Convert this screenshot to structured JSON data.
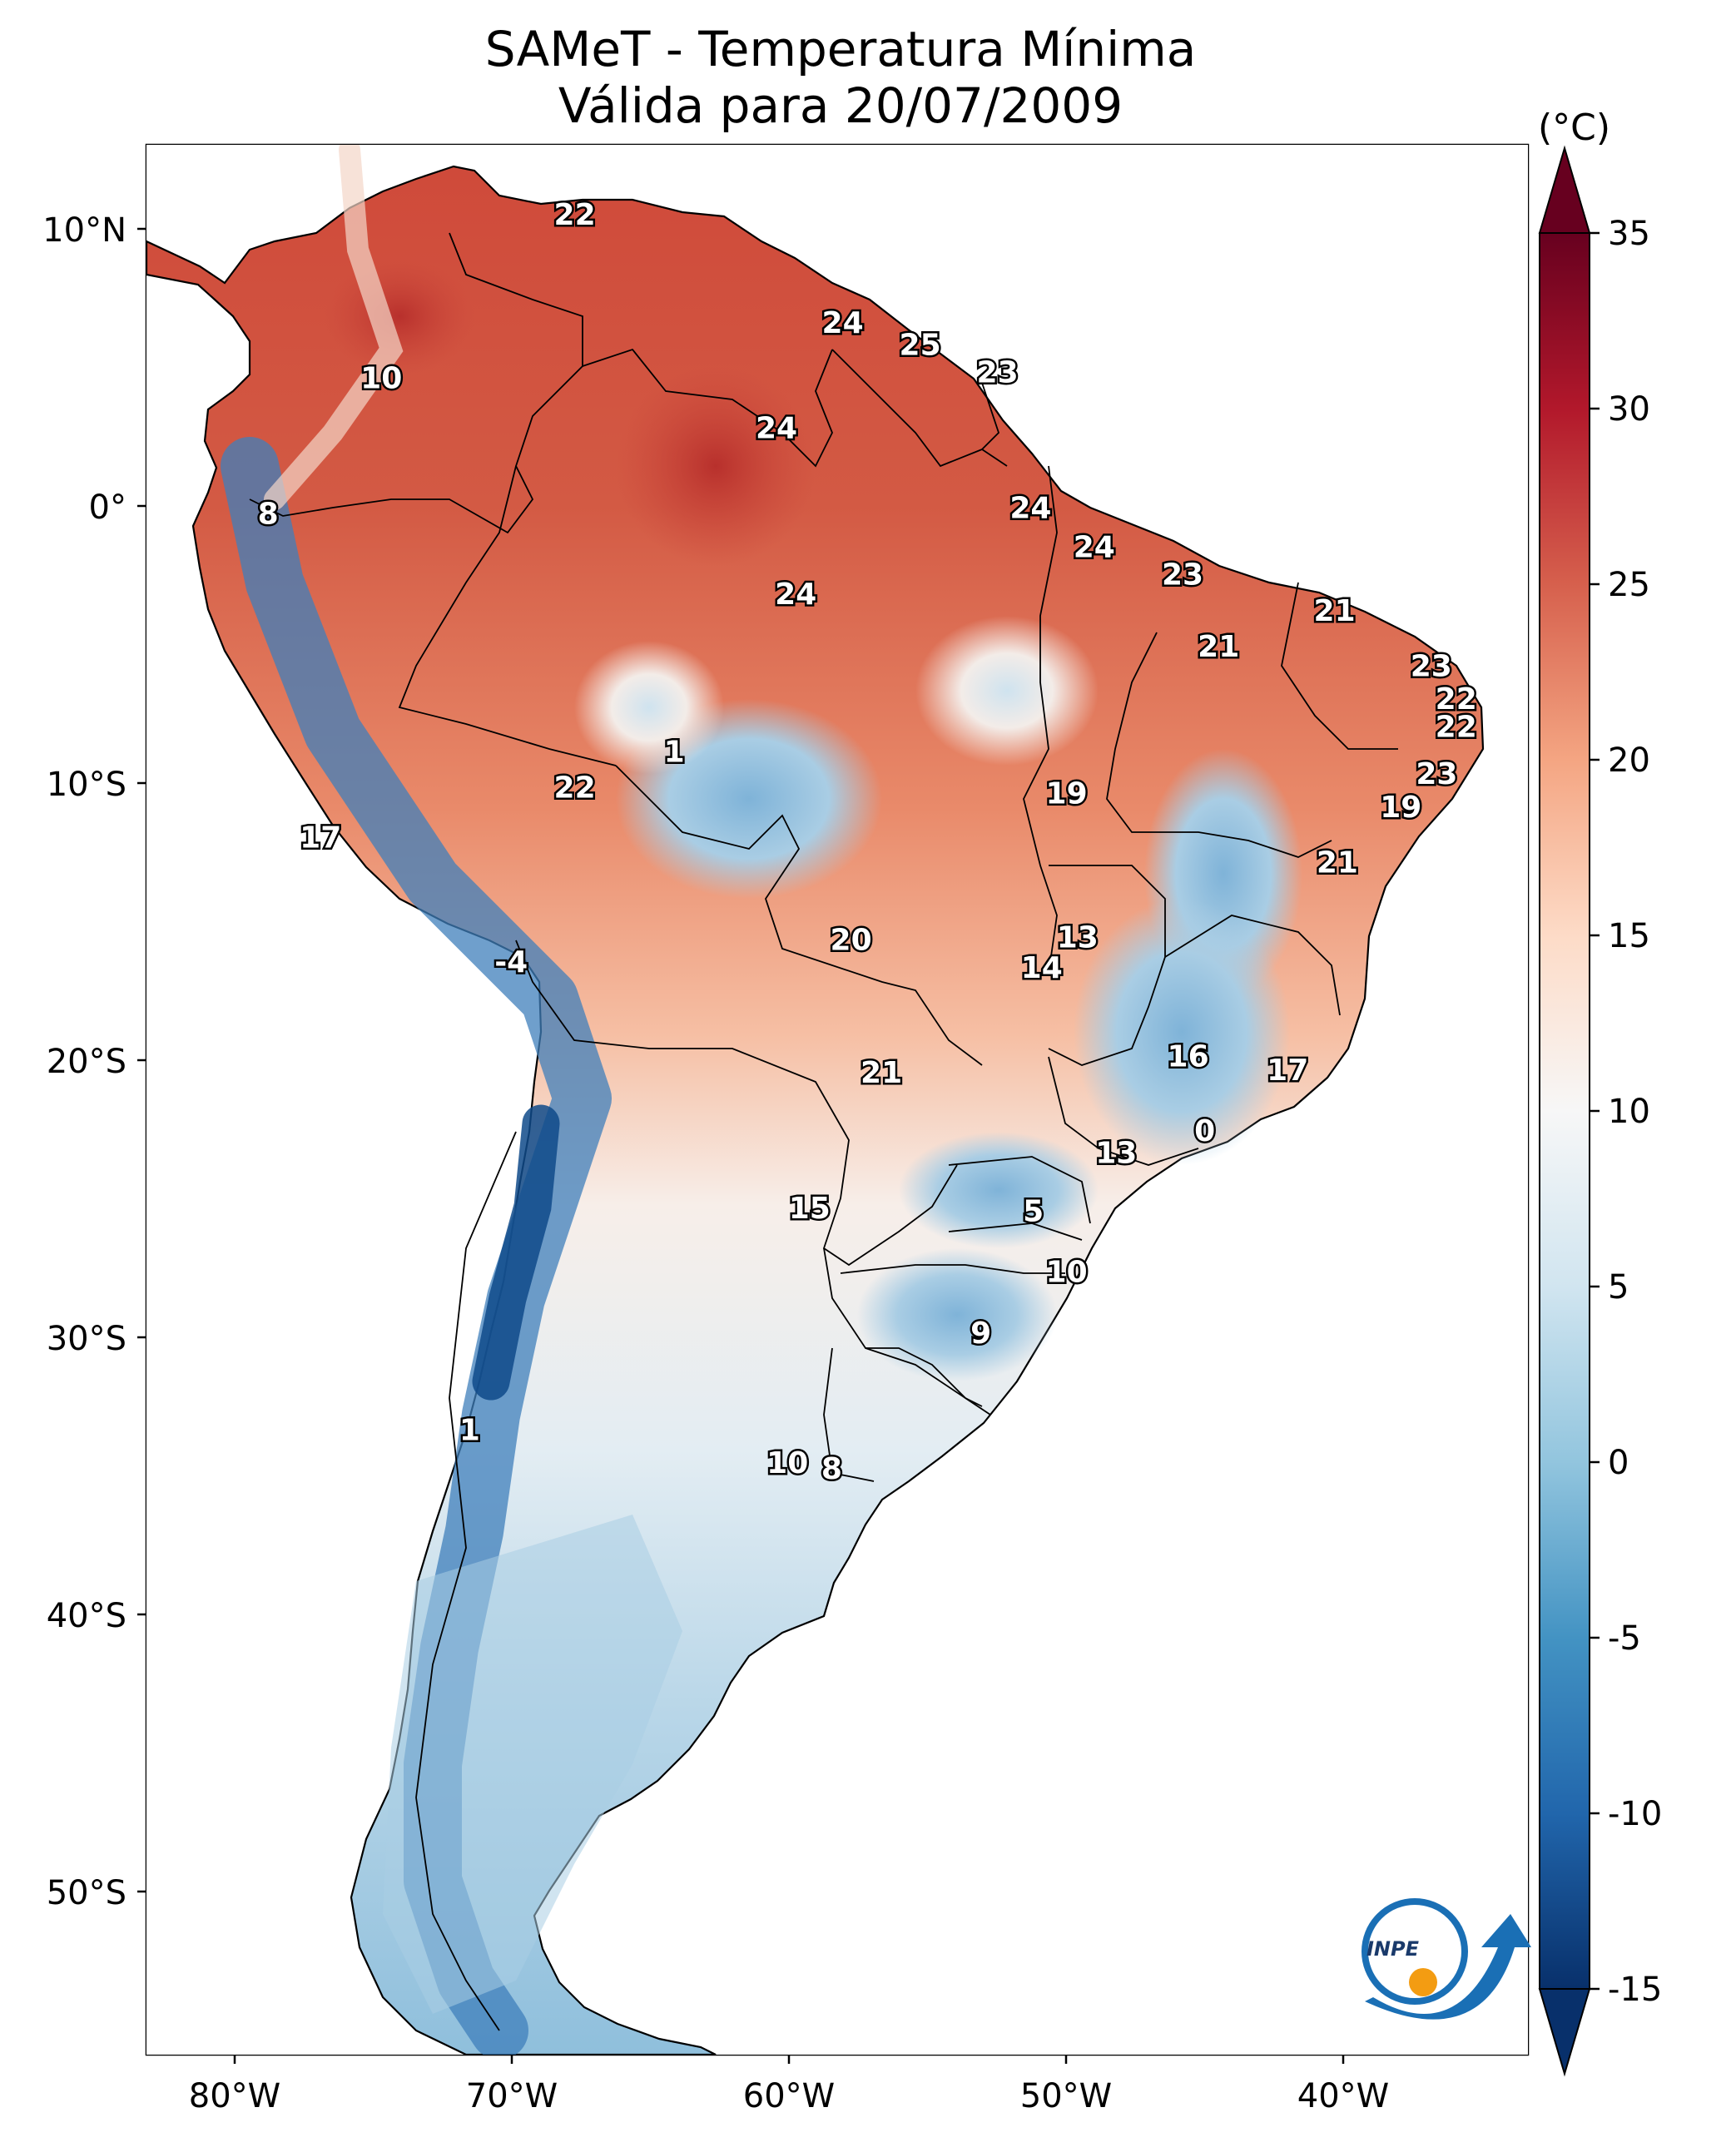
{
  "title": "SAMeT - Temperatura Mínima",
  "subtitle": "Válida para 20/07/2009",
  "colorbar": {
    "unit": "(°C)",
    "ticks": [
      "35",
      "30",
      "25",
      "20",
      "15",
      "10",
      "5",
      "0",
      "-5",
      "-10",
      "-15"
    ],
    "tick_values": [
      35,
      30,
      25,
      20,
      15,
      10,
      5,
      0,
      -5,
      -10,
      -15
    ],
    "range": [
      -15,
      35
    ],
    "extend": "both",
    "colormap": "RdBu_r",
    "colors": [
      "#08306b",
      "#2166ac",
      "#4393c3",
      "#92c5de",
      "#d1e5f0",
      "#f7f7f7",
      "#fddbc7",
      "#f4a582",
      "#d6604d",
      "#b2182b",
      "#67001f"
    ]
  },
  "axes": {
    "lon_ticks": [
      "80°W",
      "70°W",
      "60°W",
      "50°W",
      "40°W"
    ],
    "lon_values": [
      -80,
      -70,
      -60,
      -50,
      -40
    ],
    "lat_ticks": [
      "10°N",
      "0°",
      "10°S",
      "20°S",
      "30°S",
      "40°S",
      "50°S"
    ],
    "lat_values": [
      10,
      0,
      -10,
      -20,
      -30,
      -40,
      -50
    ],
    "extent": {
      "lon": [
        -83,
        -33
      ],
      "lat": [
        -56,
        13
      ]
    }
  },
  "logo": {
    "text": "INPE",
    "icon": "inpe-logo",
    "colors": [
      "#1a6fb5",
      "#f39c12"
    ]
  },
  "temperature_labels": [
    {
      "text": "22",
      "lon": -67.5,
      "lat": 10.5
    },
    {
      "text": "24",
      "lon": -57.8,
      "lat": 6.6
    },
    {
      "text": "25",
      "lon": -55.0,
      "lat": 5.8
    },
    {
      "text": "23",
      "lon": -52.2,
      "lat": 4.8
    },
    {
      "text": "10",
      "lon": -74.5,
      "lat": 4.6
    },
    {
      "text": "24",
      "lon": -60.2,
      "lat": 2.8
    },
    {
      "text": "8",
      "lon": -78.6,
      "lat": -0.3
    },
    {
      "text": "24",
      "lon": -51.0,
      "lat": -0.1
    },
    {
      "text": "24",
      "lon": -48.7,
      "lat": -1.5
    },
    {
      "text": "23",
      "lon": -45.5,
      "lat": -2.5
    },
    {
      "text": "24",
      "lon": -59.5,
      "lat": -3.2
    },
    {
      "text": "21",
      "lon": -40.0,
      "lat": -3.8
    },
    {
      "text": "21",
      "lon": -44.2,
      "lat": -5.1
    },
    {
      "text": "23",
      "lon": -36.5,
      "lat": -5.8
    },
    {
      "text": "22",
      "lon": -35.6,
      "lat": -7.0
    },
    {
      "text": "22",
      "lon": -35.6,
      "lat": -8.0
    },
    {
      "text": "1",
      "lon": -63.9,
      "lat": -8.9
    },
    {
      "text": "22",
      "lon": -67.5,
      "lat": -10.2
    },
    {
      "text": "19",
      "lon": -49.7,
      "lat": -10.4
    },
    {
      "text": "23",
      "lon": -36.3,
      "lat": -9.7
    },
    {
      "text": "17",
      "lon": -76.7,
      "lat": -12.0
    },
    {
      "text": "19",
      "lon": -37.6,
      "lat": -10.9
    },
    {
      "text": "21",
      "lon": -39.9,
      "lat": -12.9
    },
    {
      "text": "13",
      "lon": -49.3,
      "lat": -15.6
    },
    {
      "text": "20",
      "lon": -57.5,
      "lat": -15.7
    },
    {
      "text": "14",
      "lon": -50.6,
      "lat": -16.7
    },
    {
      "text": "-4",
      "lon": -69.8,
      "lat": -16.5
    },
    {
      "text": "16",
      "lon": -45.3,
      "lat": -19.9
    },
    {
      "text": "17",
      "lon": -41.7,
      "lat": -20.4
    },
    {
      "text": "21",
      "lon": -56.4,
      "lat": -20.5
    },
    {
      "text": "0",
      "lon": -44.7,
      "lat": -22.6
    },
    {
      "text": "13",
      "lon": -47.9,
      "lat": -23.4
    },
    {
      "text": "15",
      "lon": -59.0,
      "lat": -25.4
    },
    {
      "text": "5",
      "lon": -50.9,
      "lat": -25.5
    },
    {
      "text": "10",
      "lon": -49.7,
      "lat": -27.7
    },
    {
      "text": "9",
      "lon": -52.8,
      "lat": -29.9
    },
    {
      "text": "1",
      "lon": -71.3,
      "lat": -33.4
    },
    {
      "text": "10",
      "lon": -59.8,
      "lat": -34.6
    },
    {
      "text": "8",
      "lon": -58.2,
      "lat": -34.8
    }
  ]
}
